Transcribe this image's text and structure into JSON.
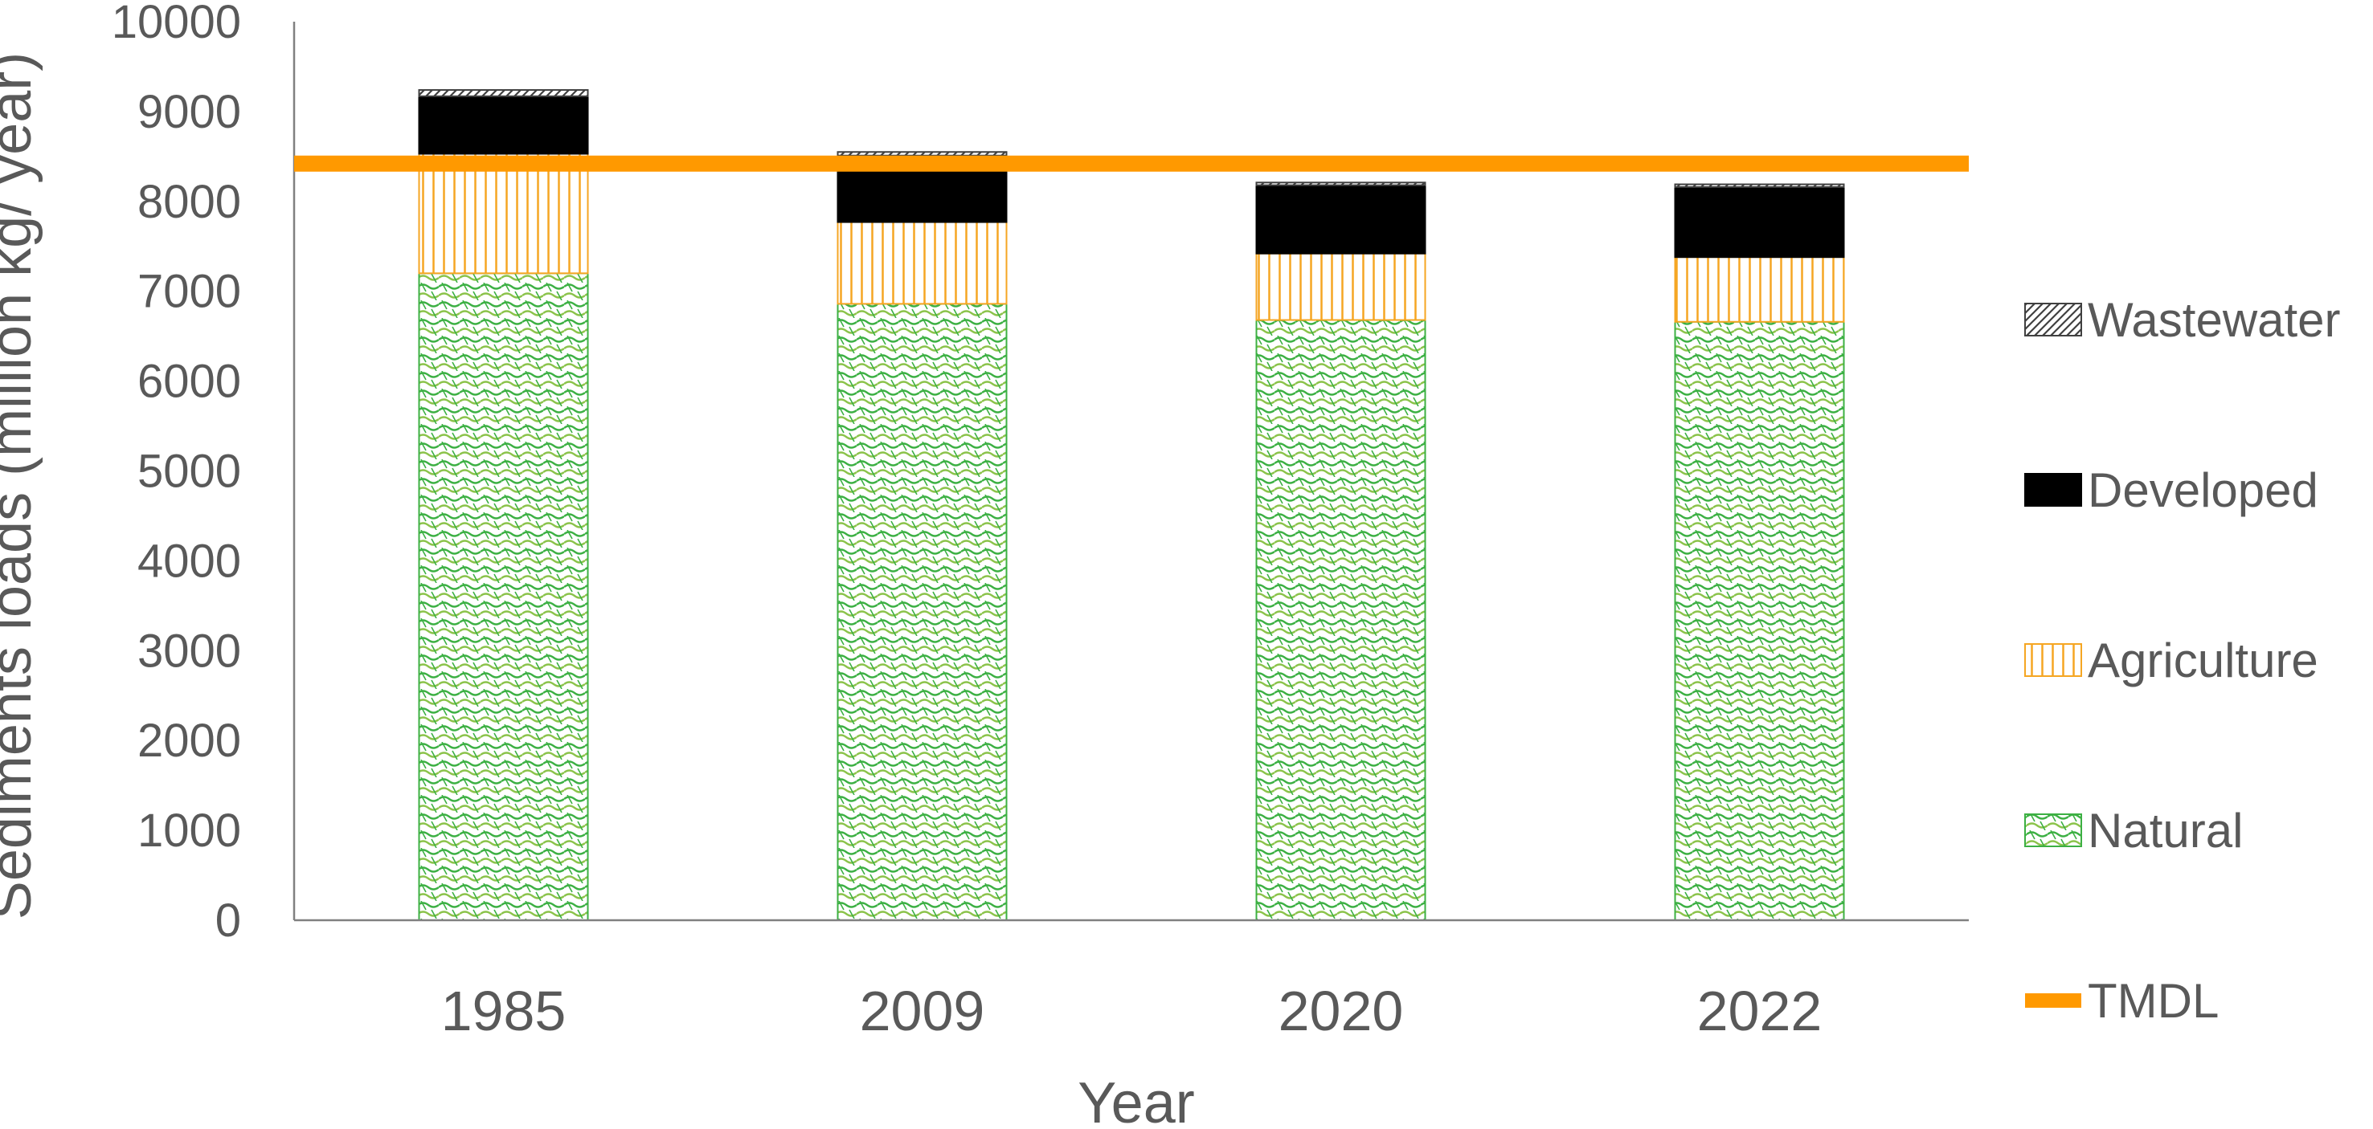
{
  "chart_data": {
    "type": "bar",
    "stacked": true,
    "title": "",
    "xlabel": "Year",
    "ylabel": "Sediments loads (million kg/ year)",
    "ylim": [
      0,
      10000
    ],
    "yticks": [
      0,
      1000,
      2000,
      3000,
      4000,
      5000,
      6000,
      7000,
      8000,
      9000,
      10000
    ],
    "categories": [
      "1985",
      "2009",
      "2020",
      "2022"
    ],
    "series": [
      {
        "name": "Natural",
        "values": [
          7200,
          6860,
          6680,
          6660
        ],
        "color": "#3cb043",
        "pattern": "crosshatch-wave"
      },
      {
        "name": "Agriculture",
        "values": [
          1330,
          910,
          740,
          720
        ],
        "color": "#f5a623",
        "pattern": "vertical-lines"
      },
      {
        "name": "Developed",
        "values": [
          640,
          740,
          760,
          780
        ],
        "color": "#000000",
        "pattern": "solid"
      },
      {
        "name": "Wastewater",
        "values": [
          70,
          40,
          30,
          30
        ],
        "color": "#404040",
        "pattern": "diagonal-lines"
      }
    ],
    "reference_line": {
      "name": "TMDL",
      "value": 8420,
      "color": "#ff9900"
    },
    "legend": {
      "position": "right",
      "entries": [
        "Wastewater",
        "Developed",
        "Agriculture",
        "Natural",
        "TMDL"
      ]
    },
    "grid": false
  }
}
